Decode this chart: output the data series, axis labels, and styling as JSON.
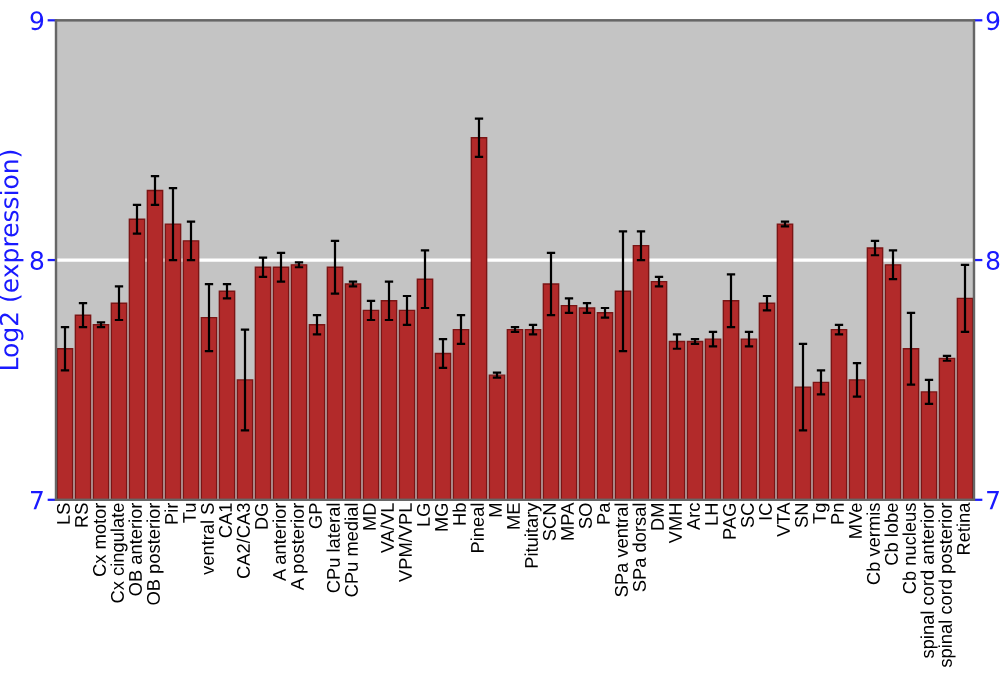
{
  "chart_data": {
    "type": "bar",
    "ylabel": "Log2 (expression)",
    "categories": [
      "LS",
      "RS",
      "Cx motor",
      "Cx cingulate",
      "OB anterior",
      "OB posterior",
      "Pir",
      "Tu",
      "ventral S",
      "CA1",
      "CA2/CA3",
      "DG",
      "A anterior",
      "A posterior",
      "GP",
      "CPu lateral",
      "CPu medial",
      "MD",
      "VA/VL",
      "VPM/VPL",
      "LG",
      "MG",
      "Hb",
      "Pineal",
      "M",
      "ME",
      "Pituitary",
      "SCN",
      "MPA",
      "SO",
      "Pa",
      "SPa ventral",
      "SPa dorsal",
      "DM",
      "VMH",
      "Arc",
      "LH",
      "PAG",
      "SC",
      "IC",
      "VTA",
      "SN",
      "Tg",
      "Pn",
      "MVe",
      "Cb vermis",
      "Cb lobe",
      "Cb nucleus",
      "spinal cord anterior",
      "spinal cord posterior",
      "Retina"
    ],
    "values": [
      7.63,
      7.77,
      7.73,
      7.82,
      8.17,
      8.29,
      8.15,
      8.08,
      7.76,
      7.87,
      7.5,
      7.97,
      7.97,
      7.98,
      7.73,
      7.97,
      7.9,
      7.79,
      7.83,
      7.79,
      7.92,
      7.61,
      7.71,
      8.51,
      7.52,
      7.71,
      7.71,
      7.9,
      7.81,
      7.8,
      7.78,
      7.87,
      8.06,
      7.91,
      7.66,
      7.66,
      7.67,
      7.83,
      7.67,
      7.82,
      8.15,
      7.47,
      7.49,
      7.71,
      7.5,
      8.05,
      7.98,
      7.63,
      7.45,
      7.59,
      7.84
    ],
    "errors": [
      0.09,
      0.05,
      0.01,
      0.07,
      0.06,
      0.06,
      0.15,
      0.08,
      0.14,
      0.03,
      0.21,
      0.04,
      0.06,
      0.01,
      0.04,
      0.11,
      0.01,
      0.04,
      0.08,
      0.06,
      0.12,
      0.06,
      0.06,
      0.08,
      0.01,
      0.01,
      0.02,
      0.13,
      0.03,
      0.02,
      0.02,
      0.25,
      0.06,
      0.02,
      0.03,
      0.01,
      0.03,
      0.11,
      0.03,
      0.03,
      0.01,
      0.18,
      0.05,
      0.02,
      0.07,
      0.03,
      0.06,
      0.15,
      0.05,
      0.01,
      0.14
    ],
    "color": "#b22a2a",
    "ylim": [
      7,
      9
    ],
    "yticks": [
      7,
      8,
      9
    ],
    "y2lim": [
      7,
      9
    ],
    "y2ticks": [
      7,
      8,
      9
    ],
    "grid": "y"
  }
}
